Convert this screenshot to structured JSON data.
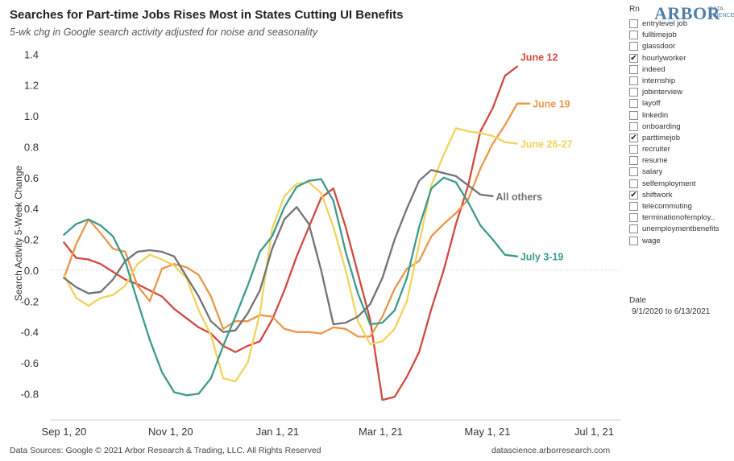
{
  "header": {
    "title": "Searches for Part-time Jobs Rises Most in States Cutting UI Benefits",
    "subtitle": "5-wk chg in Google search activity adjusted for noise and seasonality"
  },
  "logo": {
    "main": "ARBOR",
    "sub": "DATA SCIENCE"
  },
  "filter": {
    "title": "Rn",
    "items": [
      {
        "label": "entrylevel job",
        "checked": false
      },
      {
        "label": "fulltimejob",
        "checked": false
      },
      {
        "label": "glassdoor",
        "checked": false
      },
      {
        "label": "hourlyworker",
        "checked": true
      },
      {
        "label": "indeed",
        "checked": false
      },
      {
        "label": "internship",
        "checked": false
      },
      {
        "label": "jobinterview",
        "checked": false
      },
      {
        "label": "layoff",
        "checked": false
      },
      {
        "label": "linkedin",
        "checked": false
      },
      {
        "label": "onboarding",
        "checked": false
      },
      {
        "label": "parttimejob",
        "checked": true
      },
      {
        "label": "recruiter",
        "checked": false
      },
      {
        "label": "resume",
        "checked": false
      },
      {
        "label": "salary",
        "checked": false
      },
      {
        "label": "selfemployment",
        "checked": false
      },
      {
        "label": "shiftwork",
        "checked": true
      },
      {
        "label": "telecommuting",
        "checked": false
      },
      {
        "label": "terminationofemploy..",
        "checked": false
      },
      {
        "label": "unemploymentbenefits",
        "checked": false
      },
      {
        "label": "wage",
        "checked": false
      }
    ]
  },
  "date_filter": {
    "title": "Date",
    "range": "9/1/2020 to 6/13/2021"
  },
  "footer": {
    "sources": "Data Sources: Google © 2021 Arbor Research & Trading, LLC. All Rights Reserved",
    "website": "datascience.arborresearch.com"
  },
  "chart_data": {
    "type": "line",
    "title": "Searches for Part-time Jobs Rises Most in States Cutting UI Benefits",
    "subtitle": "5-wk chg in Google search activity adjusted for noise and seasonality",
    "xlabel": "",
    "ylabel": "Search Activity 5-Week Change",
    "xlim": [
      "2020-08-24",
      "2021-07-16"
    ],
    "ylim": [
      -0.97,
      1.48
    ],
    "x_ticks": [
      {
        "label": "Sep 1, 20",
        "date": "2020-09-01"
      },
      {
        "label": "Nov 1, 20",
        "date": "2020-11-01"
      },
      {
        "label": "Jan 1, 21",
        "date": "2021-01-01"
      },
      {
        "label": "Mar 1, 21",
        "date": "2021-03-01"
      },
      {
        "label": "May 1, 21",
        "date": "2021-05-01"
      },
      {
        "label": "Jul 1, 21",
        "date": "2021-07-01"
      }
    ],
    "y_ticks": [
      {
        "label": "1.4",
        "value": 1.4
      },
      {
        "label": "1.2",
        "value": 1.2
      },
      {
        "label": "1.0",
        "value": 1.0
      },
      {
        "label": "0.8",
        "value": 0.8
      },
      {
        "label": "0.6",
        "value": 0.6
      },
      {
        "label": "0.4",
        "value": 0.4
      },
      {
        "label": "0.2",
        "value": 0.2
      },
      {
        "label": "0.0",
        "value": 0.0
      },
      {
        "label": "-0.2",
        "value": -0.2
      },
      {
        "label": "-0.4",
        "value": -0.4
      },
      {
        "label": "-0.6",
        "value": -0.6
      },
      {
        "label": "-0.8",
        "value": -0.8
      }
    ],
    "zero_line": true,
    "grid": false,
    "series": [
      {
        "name": "June 12",
        "color": "#d1493f",
        "points": [
          [
            "2020-09-01",
            0.18
          ],
          [
            "2020-09-08",
            0.08
          ],
          [
            "2020-09-15",
            0.07
          ],
          [
            "2020-09-22",
            0.04
          ],
          [
            "2020-09-29",
            -0.01
          ],
          [
            "2020-10-06",
            -0.06
          ],
          [
            "2020-10-13",
            -0.09
          ],
          [
            "2020-10-20",
            -0.13
          ],
          [
            "2020-10-27",
            -0.17
          ],
          [
            "2020-11-03",
            -0.25
          ],
          [
            "2020-11-10",
            -0.31
          ],
          [
            "2020-11-17",
            -0.37
          ],
          [
            "2020-11-24",
            -0.41
          ],
          [
            "2020-12-01",
            -0.49
          ],
          [
            "2020-12-08",
            -0.53
          ],
          [
            "2020-12-15",
            -0.49
          ],
          [
            "2020-12-22",
            -0.46
          ],
          [
            "2020-12-29",
            -0.32
          ],
          [
            "2021-01-05",
            -0.13
          ],
          [
            "2021-01-12",
            0.09
          ],
          [
            "2021-01-19",
            0.28
          ],
          [
            "2021-01-26",
            0.47
          ],
          [
            "2021-02-02",
            0.53
          ],
          [
            "2021-02-09",
            0.28
          ],
          [
            "2021-02-16",
            -0.02
          ],
          [
            "2021-02-23",
            -0.32
          ],
          [
            "2021-03-02",
            -0.84
          ],
          [
            "2021-03-09",
            -0.82
          ],
          [
            "2021-03-16",
            -0.69
          ],
          [
            "2021-03-23",
            -0.53
          ],
          [
            "2021-03-30",
            -0.25
          ],
          [
            "2021-04-06",
            0.0
          ],
          [
            "2021-04-13",
            0.3
          ],
          [
            "2021-04-20",
            0.55
          ],
          [
            "2021-04-27",
            0.9
          ],
          [
            "2021-05-04",
            1.05
          ],
          [
            "2021-05-11",
            1.26
          ],
          [
            "2021-05-18",
            1.32
          ]
        ]
      },
      {
        "name": "June 19",
        "color": "#e9974a",
        "points": [
          [
            "2020-09-01",
            -0.05
          ],
          [
            "2020-09-08",
            0.17
          ],
          [
            "2020-09-15",
            0.33
          ],
          [
            "2020-09-22",
            0.24
          ],
          [
            "2020-09-29",
            0.14
          ],
          [
            "2020-10-06",
            0.12
          ],
          [
            "2020-10-13",
            -0.1
          ],
          [
            "2020-10-20",
            -0.2
          ],
          [
            "2020-10-27",
            0.01
          ],
          [
            "2020-11-03",
            0.04
          ],
          [
            "2020-11-10",
            0.02
          ],
          [
            "2020-11-17",
            -0.03
          ],
          [
            "2020-11-24",
            -0.17
          ],
          [
            "2020-12-01",
            -0.38
          ],
          [
            "2020-12-08",
            -0.33
          ],
          [
            "2020-12-15",
            -0.33
          ],
          [
            "2020-12-22",
            -0.29
          ],
          [
            "2020-12-29",
            -0.3
          ],
          [
            "2021-01-05",
            -0.38
          ],
          [
            "2021-01-12",
            -0.4
          ],
          [
            "2021-01-19",
            -0.4
          ],
          [
            "2021-01-26",
            -0.41
          ],
          [
            "2021-02-02",
            -0.37
          ],
          [
            "2021-02-09",
            -0.38
          ],
          [
            "2021-02-16",
            -0.43
          ],
          [
            "2021-02-23",
            -0.43
          ],
          [
            "2021-03-02",
            -0.3
          ],
          [
            "2021-03-09",
            -0.12
          ],
          [
            "2021-03-16",
            0.01
          ],
          [
            "2021-03-23",
            0.06
          ],
          [
            "2021-03-30",
            0.22
          ],
          [
            "2021-04-06",
            0.3
          ],
          [
            "2021-04-13",
            0.37
          ],
          [
            "2021-04-20",
            0.46
          ],
          [
            "2021-04-27",
            0.66
          ],
          [
            "2021-05-04",
            0.82
          ],
          [
            "2021-05-11",
            0.94
          ],
          [
            "2021-05-18",
            1.08
          ],
          [
            "2021-05-25",
            1.08
          ]
        ]
      },
      {
        "name": "June 26-27",
        "color": "#f1d35d",
        "points": [
          [
            "2020-09-01",
            -0.03
          ],
          [
            "2020-09-08",
            -0.18
          ],
          [
            "2020-09-15",
            -0.23
          ],
          [
            "2020-09-22",
            -0.18
          ],
          [
            "2020-09-29",
            -0.16
          ],
          [
            "2020-10-06",
            -0.1
          ],
          [
            "2020-10-13",
            0.04
          ],
          [
            "2020-10-20",
            0.1
          ],
          [
            "2020-10-27",
            0.07
          ],
          [
            "2020-11-03",
            0.03
          ],
          [
            "2020-11-10",
            -0.05
          ],
          [
            "2020-11-17",
            -0.26
          ],
          [
            "2020-11-24",
            -0.42
          ],
          [
            "2020-12-01",
            -0.7
          ],
          [
            "2020-12-08",
            -0.72
          ],
          [
            "2020-12-15",
            -0.6
          ],
          [
            "2020-12-22",
            -0.28
          ],
          [
            "2020-12-29",
            0.27
          ],
          [
            "2021-01-05",
            0.48
          ],
          [
            "2021-01-12",
            0.56
          ],
          [
            "2021-01-19",
            0.57
          ],
          [
            "2021-01-26",
            0.5
          ],
          [
            "2021-02-02",
            0.28
          ],
          [
            "2021-02-09",
            0.0
          ],
          [
            "2021-02-16",
            -0.33
          ],
          [
            "2021-02-23",
            -0.48
          ],
          [
            "2021-03-02",
            -0.46
          ],
          [
            "2021-03-09",
            -0.38
          ],
          [
            "2021-03-16",
            -0.2
          ],
          [
            "2021-03-23",
            0.17
          ],
          [
            "2021-03-30",
            0.55
          ],
          [
            "2021-04-06",
            0.75
          ],
          [
            "2021-04-13",
            0.92
          ],
          [
            "2021-04-20",
            0.9
          ],
          [
            "2021-04-27",
            0.89
          ],
          [
            "2021-05-04",
            0.87
          ],
          [
            "2021-05-11",
            0.83
          ],
          [
            "2021-05-18",
            0.82
          ]
        ]
      },
      {
        "name": "All others",
        "color": "#737373",
        "points": [
          [
            "2020-09-01",
            -0.05
          ],
          [
            "2020-09-08",
            -0.11
          ],
          [
            "2020-09-15",
            -0.15
          ],
          [
            "2020-09-22",
            -0.14
          ],
          [
            "2020-09-29",
            -0.06
          ],
          [
            "2020-10-06",
            0.06
          ],
          [
            "2020-10-13",
            0.12
          ],
          [
            "2020-10-20",
            0.13
          ],
          [
            "2020-10-27",
            0.12
          ],
          [
            "2020-11-03",
            0.09
          ],
          [
            "2020-11-10",
            -0.04
          ],
          [
            "2020-11-17",
            -0.17
          ],
          [
            "2020-11-24",
            -0.33
          ],
          [
            "2020-12-01",
            -0.4
          ],
          [
            "2020-12-08",
            -0.39
          ],
          [
            "2020-12-15",
            -0.28
          ],
          [
            "2020-12-22",
            -0.13
          ],
          [
            "2020-12-29",
            0.14
          ],
          [
            "2021-01-05",
            0.33
          ],
          [
            "2021-01-12",
            0.41
          ],
          [
            "2021-01-19",
            0.3
          ],
          [
            "2021-01-26",
            0.0
          ],
          [
            "2021-02-02",
            -0.35
          ],
          [
            "2021-02-09",
            -0.34
          ],
          [
            "2021-02-16",
            -0.3
          ],
          [
            "2021-02-23",
            -0.22
          ],
          [
            "2021-03-02",
            -0.05
          ],
          [
            "2021-03-09",
            0.2
          ],
          [
            "2021-03-16",
            0.4
          ],
          [
            "2021-03-23",
            0.58
          ],
          [
            "2021-03-30",
            0.65
          ],
          [
            "2021-04-06",
            0.63
          ],
          [
            "2021-04-13",
            0.61
          ],
          [
            "2021-04-20",
            0.55
          ],
          [
            "2021-04-27",
            0.49
          ],
          [
            "2021-05-04",
            0.48
          ]
        ]
      },
      {
        "name": "July 3-19",
        "color": "#3d9a8b",
        "points": [
          [
            "2020-09-01",
            0.23
          ],
          [
            "2020-09-08",
            0.3
          ],
          [
            "2020-09-15",
            0.33
          ],
          [
            "2020-09-22",
            0.29
          ],
          [
            "2020-09-29",
            0.22
          ],
          [
            "2020-10-06",
            0.06
          ],
          [
            "2020-10-13",
            -0.2
          ],
          [
            "2020-10-20",
            -0.45
          ],
          [
            "2020-10-27",
            -0.66
          ],
          [
            "2020-11-03",
            -0.79
          ],
          [
            "2020-11-10",
            -0.81
          ],
          [
            "2020-11-17",
            -0.8
          ],
          [
            "2020-11-24",
            -0.7
          ],
          [
            "2020-12-01",
            -0.49
          ],
          [
            "2020-12-08",
            -0.3
          ],
          [
            "2020-12-15",
            -0.1
          ],
          [
            "2020-12-22",
            0.12
          ],
          [
            "2020-12-29",
            0.22
          ],
          [
            "2021-01-05",
            0.41
          ],
          [
            "2021-01-12",
            0.54
          ],
          [
            "2021-01-19",
            0.58
          ],
          [
            "2021-01-26",
            0.59
          ],
          [
            "2021-02-02",
            0.45
          ],
          [
            "2021-02-09",
            0.12
          ],
          [
            "2021-02-16",
            -0.15
          ],
          [
            "2021-02-23",
            -0.35
          ],
          [
            "2021-03-02",
            -0.34
          ],
          [
            "2021-03-09",
            -0.26
          ],
          [
            "2021-03-16",
            -0.05
          ],
          [
            "2021-03-23",
            0.28
          ],
          [
            "2021-03-30",
            0.53
          ],
          [
            "2021-04-06",
            0.6
          ],
          [
            "2021-04-13",
            0.57
          ],
          [
            "2021-04-20",
            0.44
          ],
          [
            "2021-04-27",
            0.29
          ],
          [
            "2021-05-04",
            0.2
          ],
          [
            "2021-05-11",
            0.1
          ],
          [
            "2021-05-18",
            0.09
          ]
        ]
      }
    ]
  }
}
